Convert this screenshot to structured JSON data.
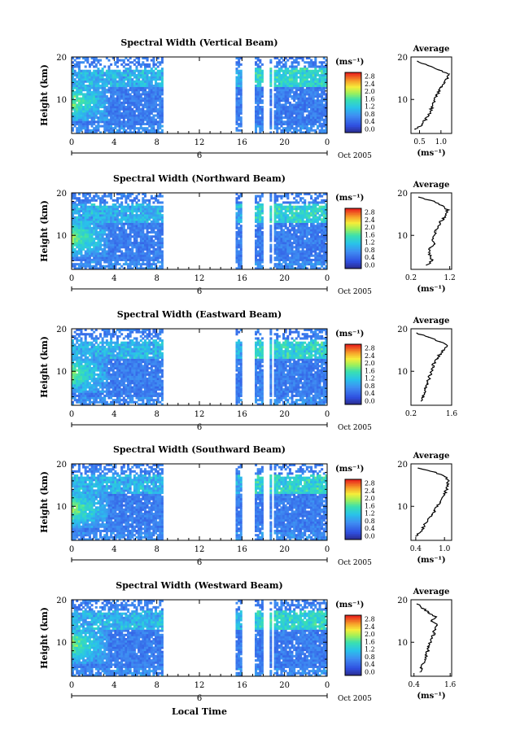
{
  "figure": {
    "bottom_xlabel": "Local Time"
  },
  "chart_data": [
    {
      "type": "heatmap",
      "title": "Spectral Width (Vertical Beam)",
      "ylabel": "Height (km)",
      "ylim": [
        2,
        20
      ],
      "yticks": [
        10,
        20
      ],
      "xlim": [
        0,
        24
      ],
      "xticks": [
        "0",
        "4",
        "8",
        "12",
        "16",
        "20",
        "0"
      ],
      "date_marker": "6",
      "date_label": "Oct 2005",
      "gaps": [
        [
          8.6,
          15.3
        ],
        [
          15.9,
          17.1
        ],
        [
          18.1,
          18.6
        ],
        [
          18.9,
          19.0
        ]
      ],
      "colorbar": {
        "unit": "(ms⁻¹)",
        "ticks": [
          "2.8",
          "2.4",
          "2.0",
          "1.6",
          "1.2",
          "0.8",
          "0.4",
          "0.0"
        ]
      },
      "profile": {
        "title": "Average",
        "xunit": "(ms⁻¹)",
        "xlim": [
          0.3,
          1.25
        ],
        "xticks": [
          "0.5",
          "1.0"
        ],
        "yticks": [
          10,
          20
        ],
        "height": [
          3,
          4,
          5,
          6,
          7,
          8,
          9,
          10,
          11,
          12,
          13,
          14,
          15,
          16,
          17,
          18,
          19
        ],
        "value": [
          0.4,
          0.55,
          0.62,
          0.7,
          0.75,
          0.78,
          0.8,
          0.85,
          0.9,
          0.95,
          1.0,
          1.1,
          1.15,
          1.2,
          0.95,
          0.7,
          0.45
        ]
      }
    },
    {
      "type": "heatmap",
      "title": "Spectral Width (Northward Beam)",
      "ylabel": "Height (km)",
      "ylim": [
        2,
        20
      ],
      "yticks": [
        10,
        20
      ],
      "xlim": [
        0,
        24
      ],
      "xticks": [
        "0",
        "4",
        "8",
        "12",
        "16",
        "20",
        "0"
      ],
      "date_marker": "6",
      "date_label": "Oct 2005",
      "gaps": [
        [
          8.6,
          15.3
        ],
        [
          15.9,
          17.1
        ],
        [
          18.1,
          18.6
        ],
        [
          18.9,
          19.0
        ]
      ],
      "colorbar": {
        "unit": "(ms⁻¹)",
        "ticks": [
          "2.8",
          "2.4",
          "2.0",
          "1.6",
          "1.2",
          "0.8",
          "0.4",
          "0.0"
        ]
      },
      "profile": {
        "title": "Average",
        "xunit": "(ms⁻¹)",
        "xlim": [
          0.2,
          1.25
        ],
        "xticks": [
          "0.2",
          "1.2"
        ],
        "yticks": [
          10,
          20
        ],
        "height": [
          3,
          4,
          5,
          6,
          7,
          8,
          9,
          10,
          11,
          12,
          13,
          14,
          15,
          16,
          17,
          18,
          19
        ],
        "value": [
          0.6,
          0.75,
          0.7,
          0.65,
          0.7,
          0.8,
          0.75,
          0.8,
          0.85,
          0.9,
          0.95,
          1.05,
          1.1,
          1.15,
          1.0,
          0.8,
          0.4
        ]
      }
    },
    {
      "type": "heatmap",
      "title": "Spectral Width (Eastward Beam)",
      "ylabel": "Height (km)",
      "ylim": [
        2,
        20
      ],
      "yticks": [
        10,
        20
      ],
      "xlim": [
        0,
        24
      ],
      "xticks": [
        "0",
        "4",
        "8",
        "12",
        "16",
        "20",
        "0"
      ],
      "date_marker": "6",
      "date_label": "Oct 2005",
      "gaps": [
        [
          8.6,
          15.3
        ],
        [
          15.9,
          17.1
        ],
        [
          18.1,
          18.6
        ],
        [
          18.9,
          19.0
        ]
      ],
      "colorbar": {
        "unit": "(ms⁻¹)",
        "ticks": [
          "2.8",
          "2.4",
          "2.0",
          "1.6",
          "1.2",
          "0.8",
          "0.4",
          "0.0"
        ]
      },
      "profile": {
        "title": "Average",
        "xunit": "",
        "xlim": [
          0.2,
          1.6
        ],
        "xticks": [
          "0.2",
          "1.6"
        ],
        "yticks": [
          10,
          20
        ],
        "height": [
          3,
          4,
          5,
          6,
          7,
          8,
          9,
          10,
          11,
          12,
          13,
          14,
          15,
          16,
          17,
          18,
          19
        ],
        "value": [
          0.55,
          0.6,
          0.65,
          0.7,
          0.75,
          0.8,
          0.85,
          0.9,
          0.95,
          1.0,
          1.1,
          1.2,
          1.3,
          1.45,
          1.2,
          0.8,
          0.4
        ]
      }
    },
    {
      "type": "heatmap",
      "title": "Spectral Width (Southward Beam)",
      "ylabel": "Height (km)",
      "ylim": [
        2,
        20
      ],
      "yticks": [
        10,
        20
      ],
      "xlim": [
        0,
        24
      ],
      "xticks": [
        "0",
        "4",
        "8",
        "12",
        "16",
        "20",
        "0"
      ],
      "date_marker": "6",
      "date_label": "Oct 2005",
      "gaps": [
        [
          8.6,
          15.3
        ],
        [
          15.9,
          17.1
        ],
        [
          18.1,
          18.6
        ],
        [
          18.9,
          19.0
        ]
      ],
      "colorbar": {
        "unit": "(ms⁻¹)",
        "ticks": [
          "2.8",
          "2.4",
          "2.0",
          "1.6",
          "1.2",
          "0.8",
          "0.4",
          "0.0"
        ]
      },
      "profile": {
        "title": "Average",
        "xunit": "(ms⁻¹)",
        "xlim": [
          0.3,
          1.15
        ],
        "xticks": [
          "0.4",
          "1.0"
        ],
        "yticks": [
          10,
          20
        ],
        "height": [
          3,
          4,
          5,
          6,
          7,
          8,
          9,
          10,
          11,
          12,
          13,
          14,
          15,
          16,
          17,
          18,
          19
        ],
        "value": [
          0.4,
          0.5,
          0.55,
          0.6,
          0.65,
          0.75,
          0.8,
          0.85,
          0.9,
          0.95,
          1.0,
          1.05,
          1.05,
          1.1,
          1.0,
          0.8,
          0.45
        ]
      }
    },
    {
      "type": "heatmap",
      "title": "Spectral Width (Westward Beam)",
      "ylabel": "Height (km)",
      "ylim": [
        2,
        20
      ],
      "yticks": [
        10,
        20
      ],
      "xlim": [
        0,
        24
      ],
      "xticks": [
        "0",
        "4",
        "8",
        "12",
        "16",
        "20",
        "0"
      ],
      "date_marker": "6",
      "date_label": "Oct 2005",
      "gaps": [
        [
          8.6,
          15.3
        ],
        [
          15.9,
          17.1
        ],
        [
          18.1,
          18.6
        ],
        [
          18.9,
          19.0
        ]
      ],
      "colorbar": {
        "unit": "(ms⁻¹)",
        "ticks": [
          "2.8",
          "2.4",
          "2.0",
          "1.6",
          "1.2",
          "0.8",
          "0.4",
          "0.0"
        ]
      },
      "profile": {
        "title": "Average",
        "xunit": "(ms⁻¹)",
        "xlim": [
          0.3,
          1.65
        ],
        "xticks": [
          "0.4",
          "1.6"
        ],
        "yticks": [
          10,
          20
        ],
        "height": [
          3,
          4,
          5,
          6,
          7,
          8,
          9,
          10,
          11,
          12,
          13,
          14,
          15,
          16,
          17,
          18,
          19
        ],
        "value": [
          0.6,
          0.65,
          0.7,
          0.75,
          0.8,
          0.85,
          0.9,
          0.95,
          1.0,
          1.05,
          1.1,
          1.15,
          1.0,
          1.1,
          0.9,
          0.7,
          0.5
        ]
      }
    }
  ]
}
